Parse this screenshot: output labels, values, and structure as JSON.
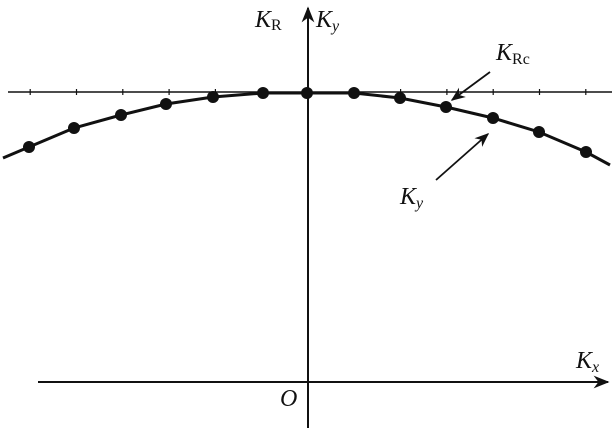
{
  "labels": {
    "kr_main": "K",
    "kr_sub": "R",
    "ky_axis_main": "K",
    "ky_axis_sub": "y",
    "krc_main": "K",
    "krc_sub": "Rc",
    "ky_curve_main": "K",
    "ky_curve_sub": "y",
    "kx_main": "K",
    "kx_sub": "x",
    "origin": "O"
  },
  "colors": {
    "ink": "#111111"
  }
}
